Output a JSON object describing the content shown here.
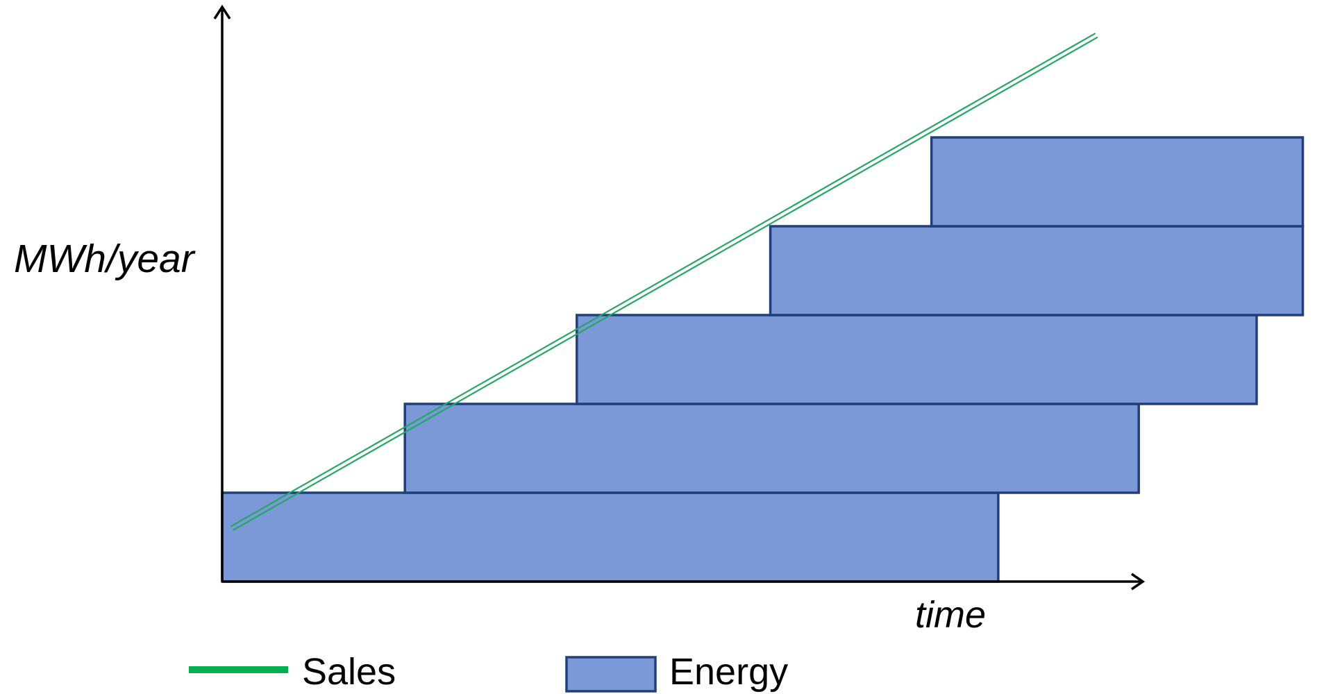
{
  "chart_data": {
    "type": "bar",
    "orientation": "horizontal",
    "ylabel": "MWh/year",
    "xlabel": "time",
    "legend_placement": "bottom",
    "energy_blocks": [
      {
        "start": 0,
        "end": 0.79
      },
      {
        "start": 0.186,
        "end": 0.933
      },
      {
        "start": 0.361,
        "end": 1.053
      },
      {
        "start": 0.558,
        "end": 1.1
      },
      {
        "start": 0.722,
        "end": 1.1
      }
    ],
    "sales_line": {
      "x": [
        0.01,
        0.89
      ],
      "y": [
        0.12,
        1.23
      ]
    },
    "series": [
      {
        "name": "Sales",
        "kind": "line"
      },
      {
        "name": "Energy",
        "kind": "bar"
      }
    ],
    "colors": {
      "energy_fill": "#7b99d6",
      "energy_stroke": "#213f7c",
      "sales": "#21a862",
      "legend_sales": "#00b050",
      "axis": "#000000"
    }
  }
}
